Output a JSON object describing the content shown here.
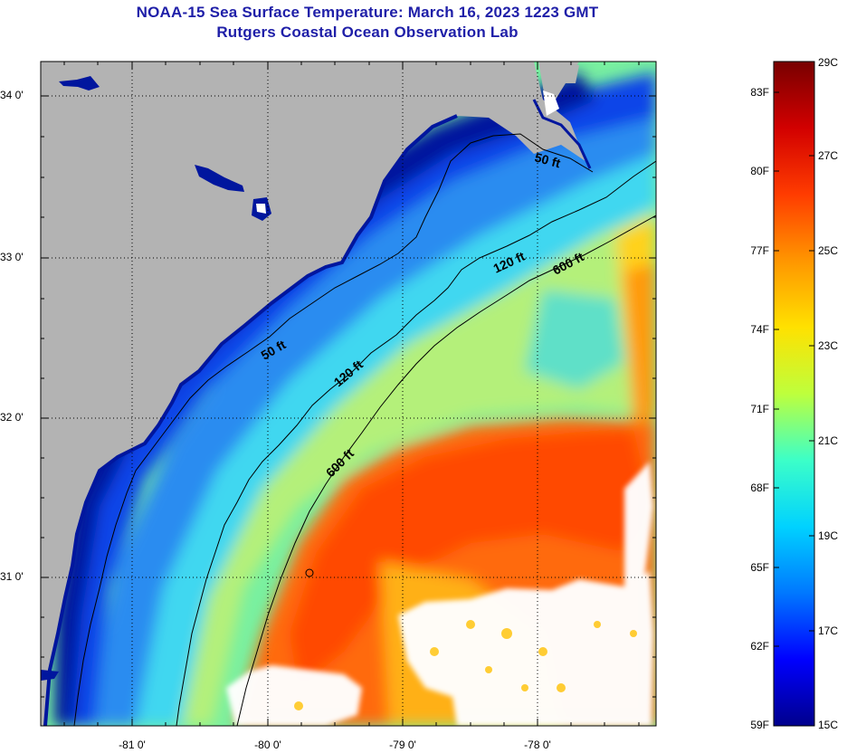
{
  "title": {
    "line1": "NOAA-15 Sea Surface Temperature:  March 16, 2023 1223 GMT",
    "line2": "Rutgers Coastal Ocean Observation Lab"
  },
  "axes": {
    "latitude_labels": [
      "34 0'",
      "33 0'",
      "32 0'",
      "31 0'"
    ],
    "longitude_labels": [
      "-81 0'",
      "-80 0'",
      "-79 0'",
      "-78 0'"
    ]
  },
  "isobaths": [
    {
      "label": "50 ft",
      "depth_ft": 50
    },
    {
      "label": "50 ft",
      "depth_ft": 50
    },
    {
      "label": "120 ft",
      "depth_ft": 120
    },
    {
      "label": "120 ft",
      "depth_ft": 120
    },
    {
      "label": "600 ft",
      "depth_ft": 600
    },
    {
      "label": "600 ft",
      "depth_ft": 600
    }
  ],
  "colorbar": {
    "fahrenheit_labels": [
      "83F",
      "80F",
      "77F",
      "74F",
      "71F",
      "68F",
      "65F",
      "62F",
      "59F"
    ],
    "celsius_labels": [
      "29C",
      "27C",
      "25C",
      "23C",
      "21C",
      "19C",
      "17C",
      "15C"
    ],
    "range_c": [
      15,
      29
    ],
    "colors": [
      "#00008c",
      "#0000ff",
      "#0078ff",
      "#00d2ff",
      "#3cffc8",
      "#beff3c",
      "#ffe100",
      "#ff9600",
      "#ff3c00",
      "#d20000",
      "#780000"
    ]
  },
  "colors": {
    "land": "#b3b3b3",
    "cloud": "#ffffff",
    "title": "#1f1fa8"
  }
}
